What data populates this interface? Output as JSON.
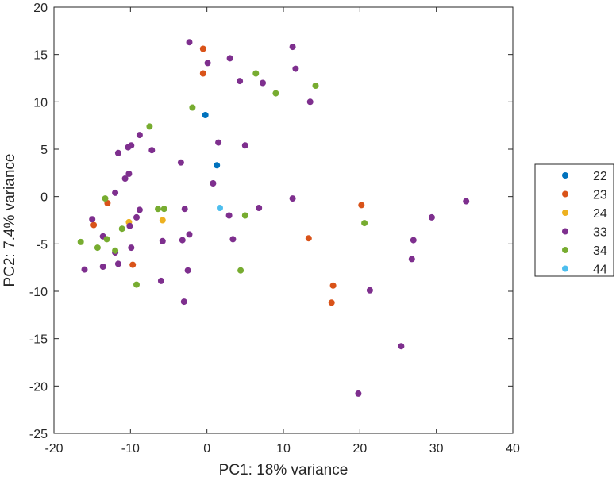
{
  "chart_data": {
    "type": "scatter",
    "title": "",
    "xlabel": "PC1: 18% variance",
    "ylabel": "PC2: 7.4% variance",
    "xlim": [
      -20,
      40
    ],
    "ylim": [
      -25,
      20
    ],
    "xticks": [
      -20,
      -10,
      0,
      10,
      20,
      30,
      40
    ],
    "xtick_labels": [
      "-20",
      "-10",
      "0",
      "10",
      "20",
      "30",
      "40"
    ],
    "yticks": [
      20,
      15,
      10,
      5,
      0,
      -5,
      -10,
      -15,
      -20,
      -25
    ],
    "ytick_labels": [
      "20",
      "15",
      "10",
      "5",
      "0",
      "-5",
      "-10",
      "-15",
      "-20",
      "-25"
    ],
    "grid": false,
    "legend_position": "right",
    "series": [
      {
        "name": "22",
        "color": "#0072BD",
        "points": [
          [
            -0.2,
            8.6
          ],
          [
            1.3,
            3.3
          ]
        ]
      },
      {
        "name": "23",
        "color": "#D95319",
        "points": [
          [
            -0.5,
            15.6
          ],
          [
            -0.5,
            13.0
          ],
          [
            -13.0,
            -0.7
          ],
          [
            -14.8,
            -3.0
          ],
          [
            -9.7,
            -7.2
          ],
          [
            13.3,
            -4.4
          ],
          [
            20.2,
            -0.9
          ],
          [
            16.5,
            -9.4
          ],
          [
            16.3,
            -11.2
          ]
        ]
      },
      {
        "name": "24",
        "color": "#EDB120",
        "points": [
          [
            -10.2,
            -2.7
          ],
          [
            -5.8,
            -2.5
          ]
        ]
      },
      {
        "name": "33",
        "color": "#7E2F8E",
        "points": [
          [
            -2.3,
            16.3
          ],
          [
            0.1,
            14.1
          ],
          [
            3.0,
            14.6
          ],
          [
            4.3,
            12.2
          ],
          [
            7.3,
            12.0
          ],
          [
            11.2,
            15.8
          ],
          [
            11.6,
            13.5
          ],
          [
            13.5,
            10.0
          ],
          [
            -8.8,
            6.5
          ],
          [
            -7.2,
            4.9
          ],
          [
            -11.6,
            4.6
          ],
          [
            -10.3,
            5.2
          ],
          [
            -9.9,
            5.4
          ],
          [
            -10.7,
            1.9
          ],
          [
            -10.2,
            2.4
          ],
          [
            -12.0,
            0.4
          ],
          [
            -3.4,
            3.6
          ],
          [
            1.5,
            5.7
          ],
          [
            5.0,
            5.4
          ],
          [
            0.8,
            1.4
          ],
          [
            11.2,
            -0.2
          ],
          [
            6.8,
            -1.2
          ],
          [
            2.9,
            -2.0
          ],
          [
            3.4,
            -4.5
          ],
          [
            -2.9,
            -1.3
          ],
          [
            -2.3,
            -4.0
          ],
          [
            -3.2,
            -4.6
          ],
          [
            -5.8,
            -4.7
          ],
          [
            -9.2,
            -2.2
          ],
          [
            -8.8,
            -1.4
          ],
          [
            -10.1,
            -3.1
          ],
          [
            -15.0,
            -2.4
          ],
          [
            -13.6,
            -4.2
          ],
          [
            -12.0,
            -5.9
          ],
          [
            -11.6,
            -7.1
          ],
          [
            -13.6,
            -7.4
          ],
          [
            -16.0,
            -7.7
          ],
          [
            -9.9,
            -5.4
          ],
          [
            -6.0,
            -8.9
          ],
          [
            -2.5,
            -7.8
          ],
          [
            -3.0,
            -11.1
          ],
          [
            21.3,
            -9.9
          ],
          [
            26.8,
            -6.6
          ],
          [
            27.0,
            -4.6
          ],
          [
            29.4,
            -2.2
          ],
          [
            33.9,
            -0.5
          ],
          [
            25.4,
            -15.8
          ],
          [
            19.8,
            -20.8
          ]
        ]
      },
      {
        "name": "34",
        "color": "#77AC30",
        "points": [
          [
            -7.5,
            7.4
          ],
          [
            -1.9,
            9.4
          ],
          [
            6.4,
            13.0
          ],
          [
            9.0,
            10.9
          ],
          [
            14.2,
            11.7
          ],
          [
            -13.3,
            -0.2
          ],
          [
            -6.4,
            -1.3
          ],
          [
            -5.6,
            -1.3
          ],
          [
            5.0,
            -2.0
          ],
          [
            20.6,
            -2.8
          ],
          [
            -11.1,
            -3.4
          ],
          [
            -13.1,
            -4.5
          ],
          [
            -16.5,
            -4.8
          ],
          [
            -14.3,
            -5.4
          ],
          [
            -12.0,
            -5.7
          ],
          [
            -9.2,
            -9.3
          ],
          [
            4.4,
            -7.8
          ]
        ]
      },
      {
        "name": "44",
        "color": "#4DBEEE",
        "points": [
          [
            1.7,
            -1.2
          ]
        ]
      }
    ]
  }
}
